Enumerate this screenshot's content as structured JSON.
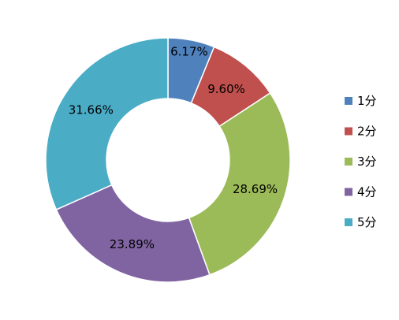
{
  "chart_data": {
    "type": "pie",
    "variant": "donut",
    "categories": [
      "1分",
      "2分",
      "3分",
      "4分",
      "5分"
    ],
    "values": [
      6.17,
      9.6,
      28.69,
      23.89,
      31.66
    ],
    "labels": [
      "6.17%",
      "9.60%",
      "28.69%",
      "23.89%",
      "31.66%"
    ],
    "colors": [
      "#4f81bd",
      "#c0504d",
      "#9bbb59",
      "#8064a2",
      "#4bacc6"
    ],
    "legend_position": "right"
  }
}
